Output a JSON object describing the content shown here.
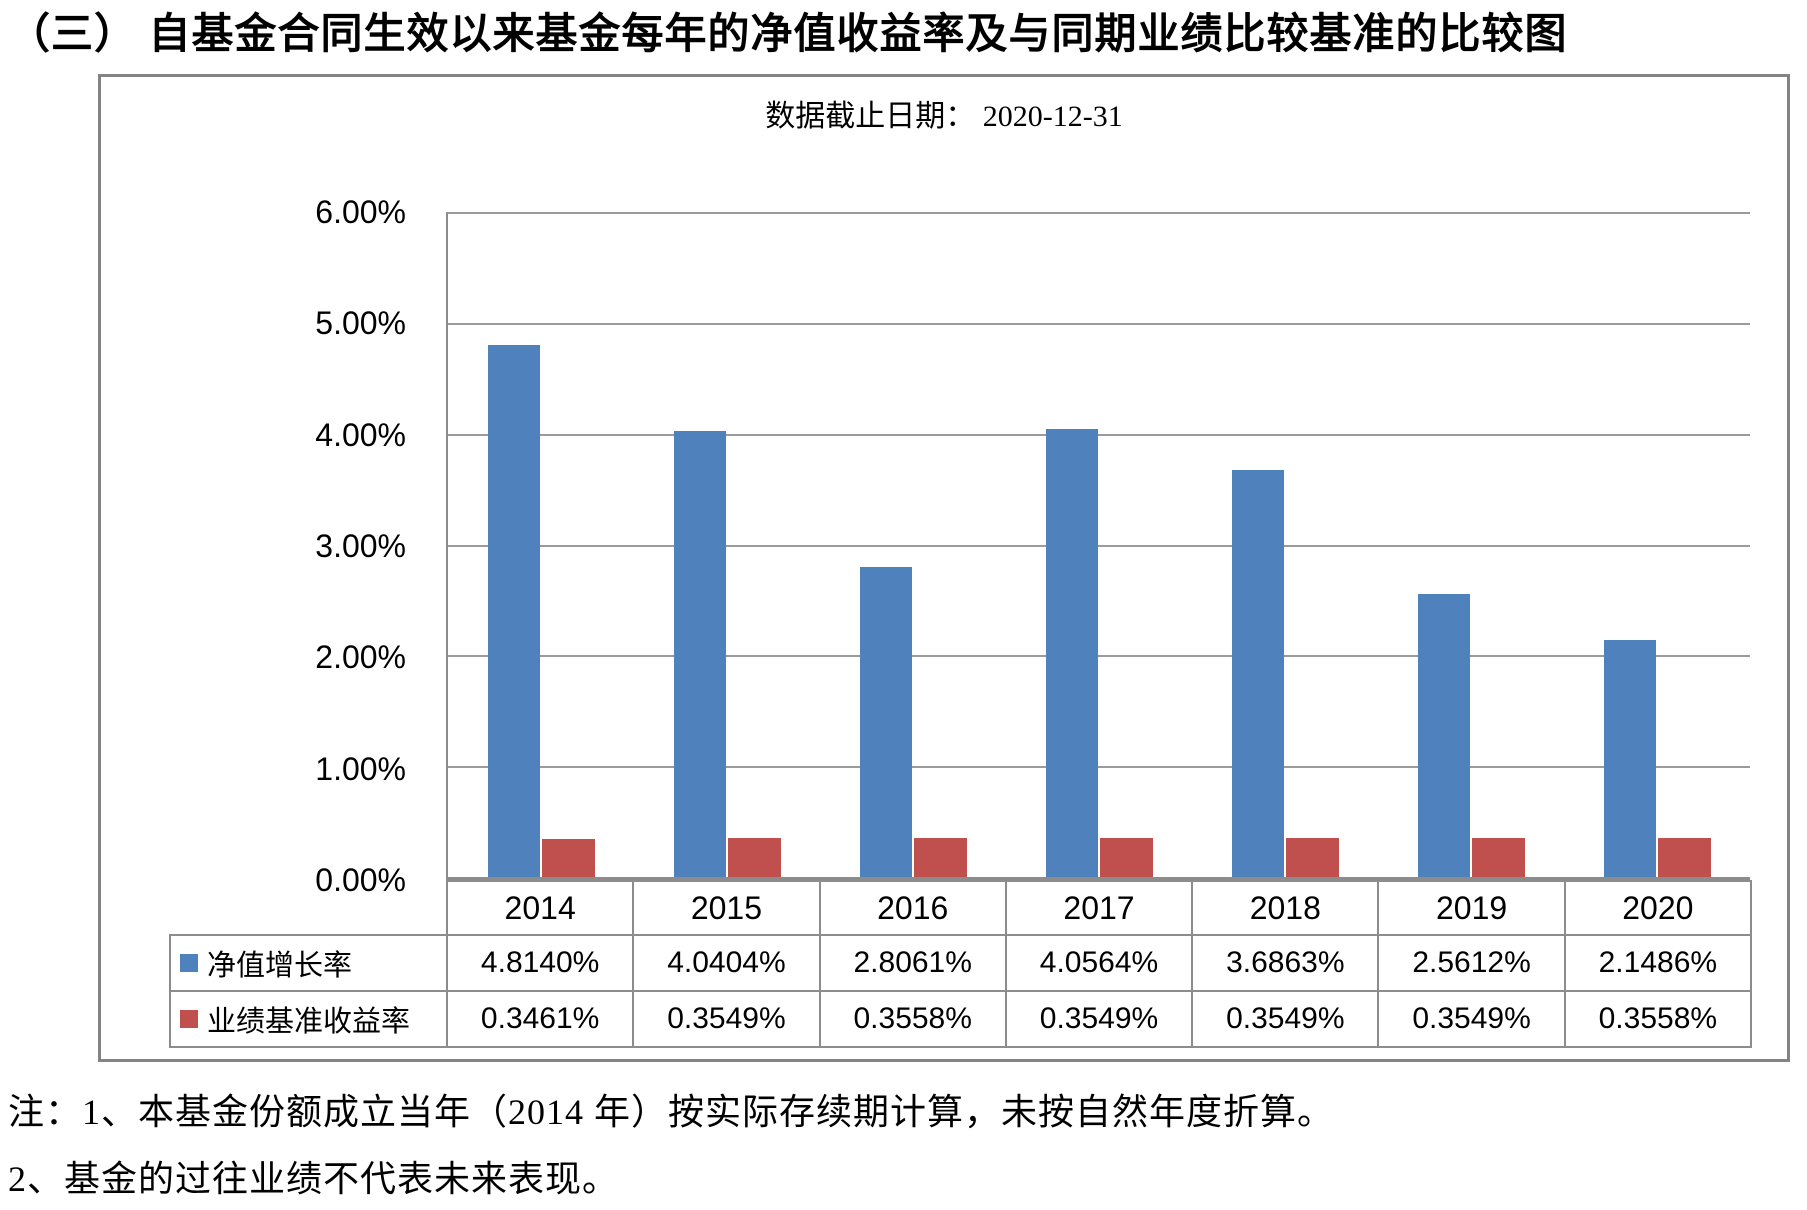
{
  "title": "（三） 自基金合同生效以来基金每年的净值收益率及与同期业绩比较基准的比较图",
  "chart_data": {
    "type": "bar",
    "subtitle": "数据截止日期： 2020-12-31",
    "categories": [
      "2014",
      "2015",
      "2016",
      "2017",
      "2018",
      "2019",
      "2020"
    ],
    "series": [
      {
        "name": "净值增长率",
        "color": "#4F81BD",
        "values": [
          4.814,
          4.0404,
          2.8061,
          4.0564,
          3.6863,
          2.5612,
          2.1486
        ],
        "labels": [
          "4.8140%",
          "4.0404%",
          "2.8061%",
          "4.0564%",
          "3.6863%",
          "2.5612%",
          "2.1486%"
        ]
      },
      {
        "name": "业绩基准收益率",
        "color": "#C0504D",
        "values": [
          0.3461,
          0.3549,
          0.3558,
          0.3549,
          0.3549,
          0.3549,
          0.3558
        ],
        "labels": [
          "0.3461%",
          "0.3549%",
          "0.3558%",
          "0.3549%",
          "0.3549%",
          "0.3549%",
          "0.3558%"
        ]
      }
    ],
    "ylim": [
      0,
      6
    ],
    "ytick_step": 1,
    "yticks": [
      "6.00%",
      "5.00%",
      "4.00%",
      "3.00%",
      "2.00%",
      "1.00%",
      "0.00%"
    ],
    "grid": true,
    "legend_position": "data-table-left-column",
    "grid_color": "#9b9b9b",
    "border_color": "#8c8c8c"
  },
  "notes": [
    "注：1、本基金份额成立当年（2014 年）按实际存续期计算，未按自然年度折算。",
    "2、基金的过往业绩不代表未来表现。"
  ]
}
